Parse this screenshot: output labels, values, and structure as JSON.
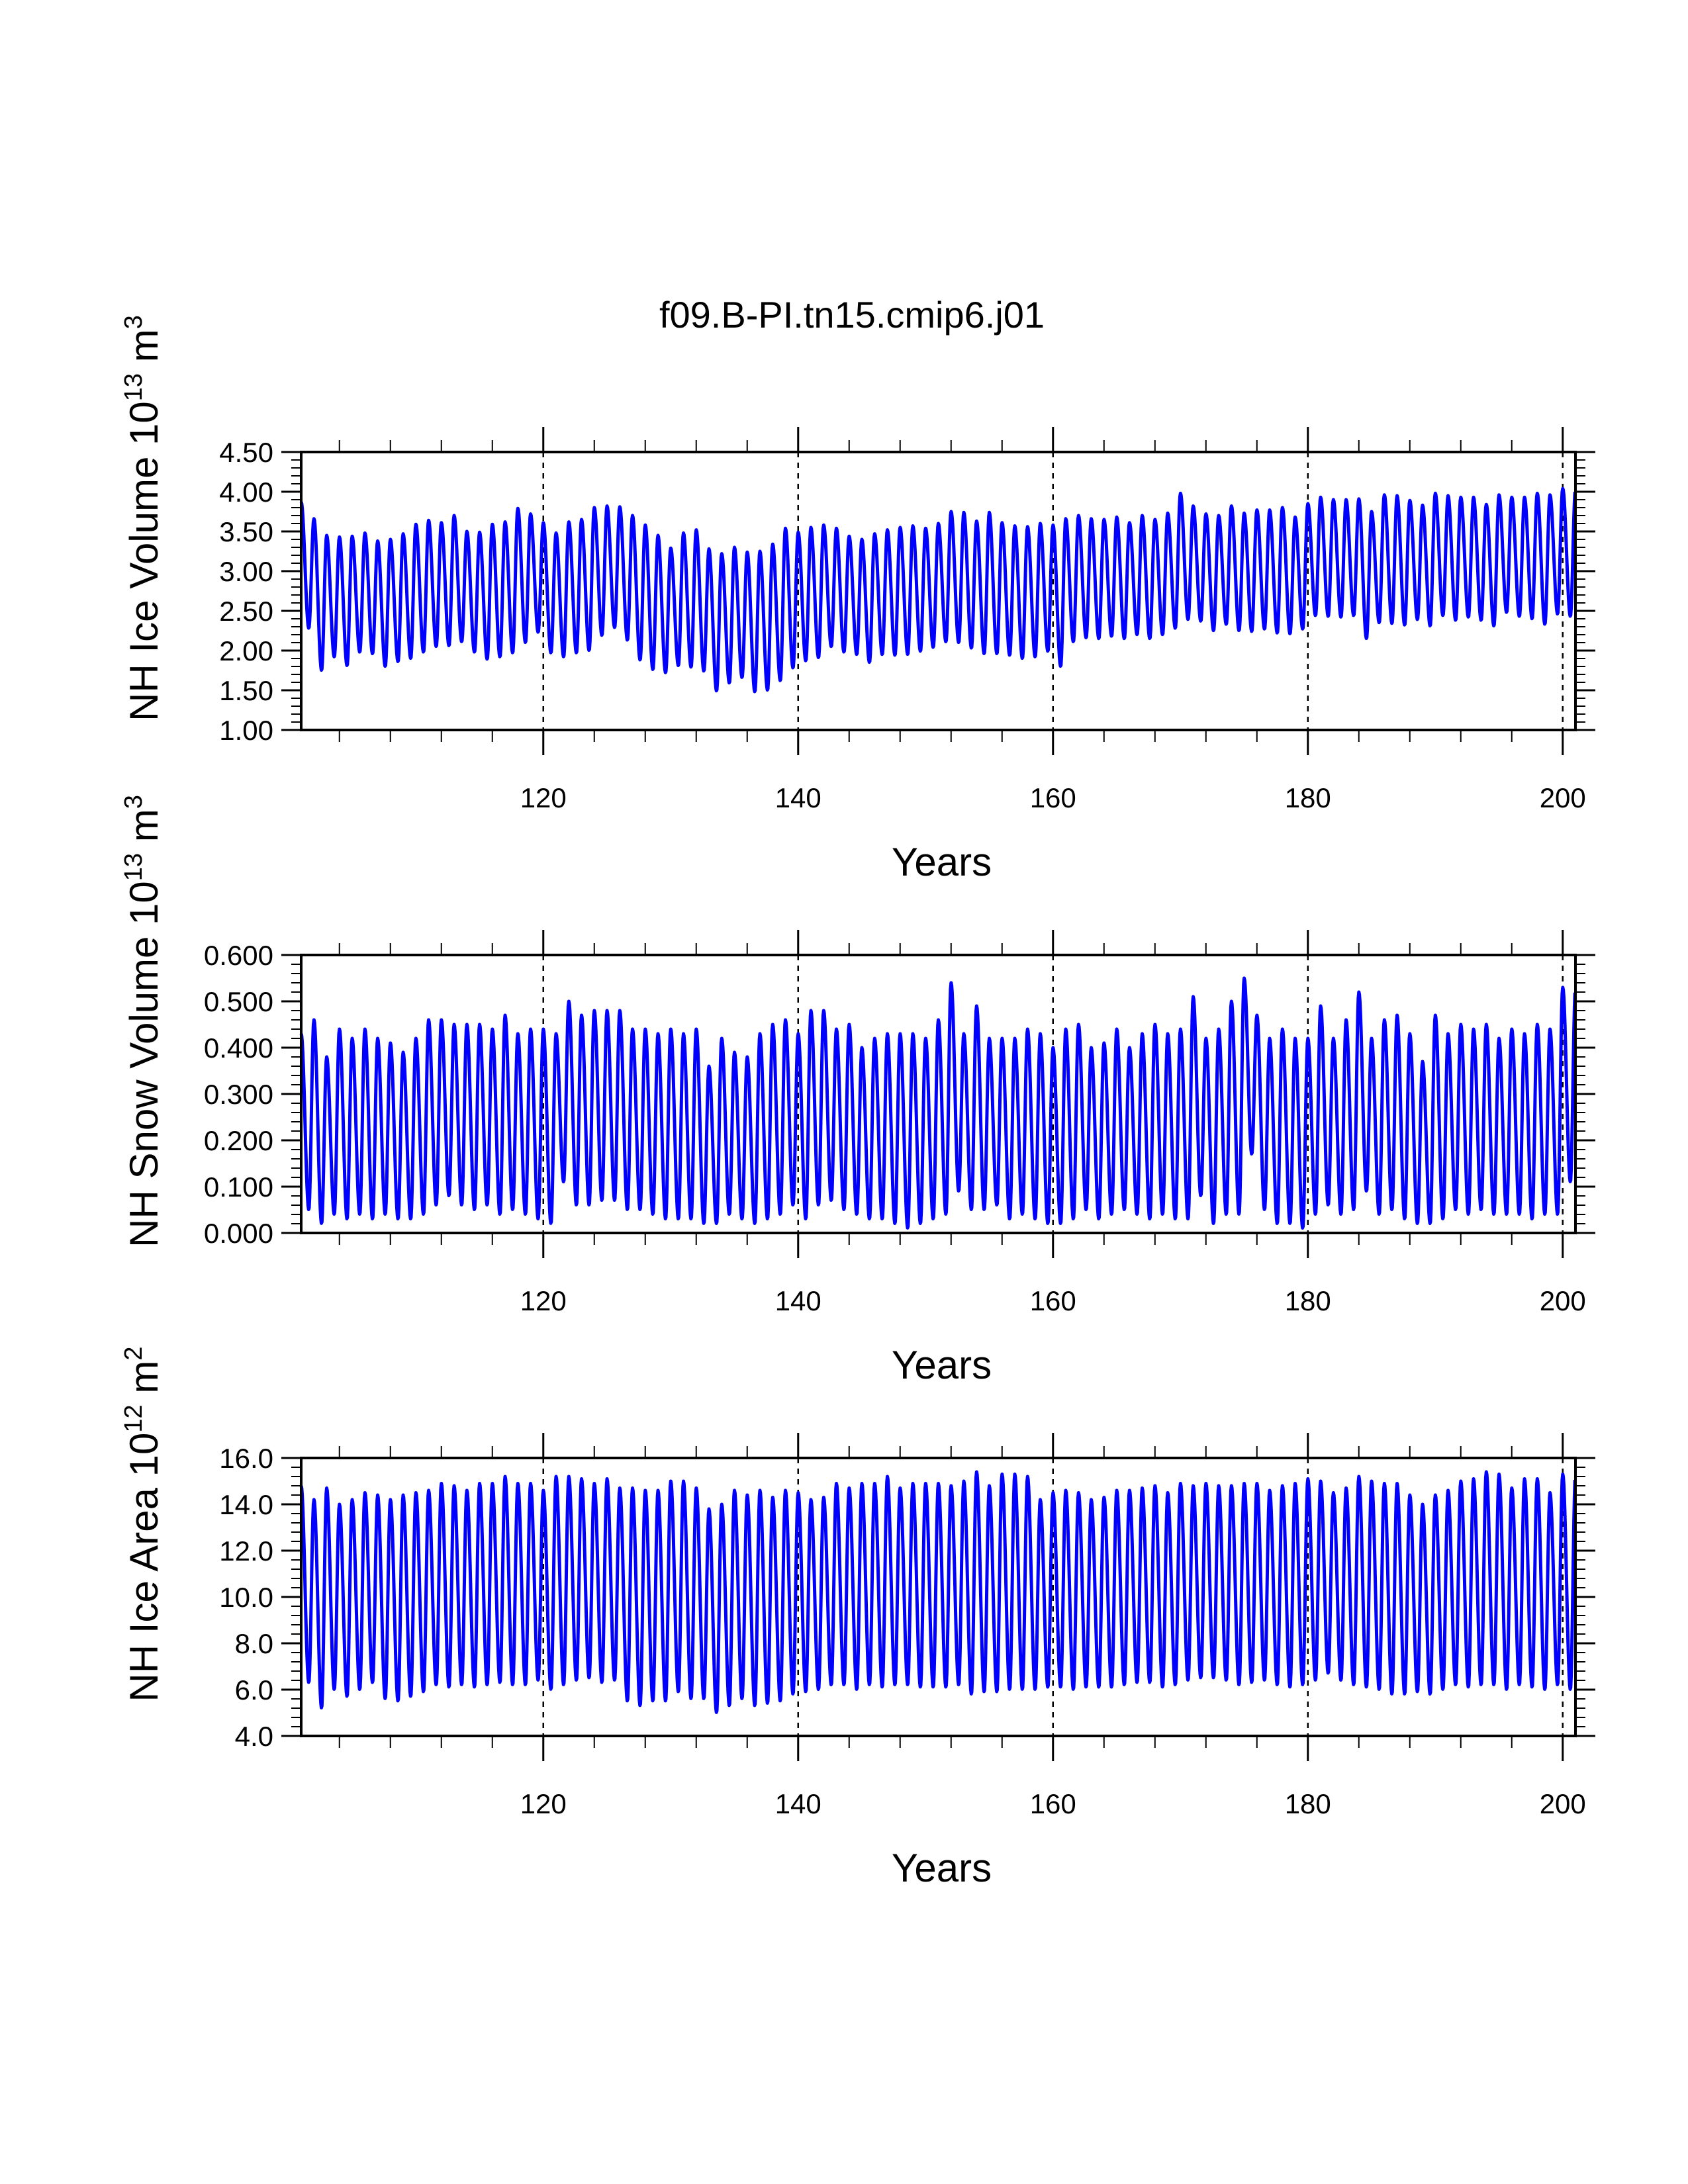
{
  "title": "f09.B-PI.tn15.cmip6.j01",
  "chart_data": [
    {
      "type": "line",
      "title": "",
      "xlabel": "Years",
      "ylabel": "NH Ice Volume 10¹³ m³",
      "ylabel_parts": {
        "base": "NH Ice Volume 10",
        "exp1": "13",
        "unit": " m",
        "exp2": "3"
      },
      "xlim": [
        101,
        201
      ],
      "ylim": [
        1.0,
        4.5
      ],
      "x_ticks": [
        120,
        140,
        160,
        180,
        200
      ],
      "x_tick_labels": [
        "120",
        "140",
        "160",
        "180",
        "200"
      ],
      "y_ticks": [
        1.0,
        1.5,
        2.0,
        2.5,
        3.0,
        3.5,
        4.0,
        4.5
      ],
      "y_tick_labels": [
        "1.00",
        "1.50",
        "2.00",
        "2.50",
        "3.00",
        "3.50",
        "4.00",
        "4.50"
      ],
      "reference_lines_x": [
        120,
        140,
        160,
        180,
        200
      ],
      "series": [
        {
          "color": "#0000ff",
          "years": [
            101,
            102,
            103,
            104,
            105,
            106,
            107,
            108,
            109,
            110,
            111,
            112,
            113,
            114,
            115,
            116,
            117,
            118,
            119,
            120,
            121,
            122,
            123,
            124,
            125,
            126,
            127,
            128,
            129,
            130,
            131,
            132,
            133,
            134,
            135,
            136,
            137,
            138,
            139,
            140,
            141,
            142,
            143,
            144,
            145,
            146,
            147,
            148,
            149,
            150,
            151,
            152,
            153,
            154,
            155,
            156,
            157,
            158,
            159,
            160,
            161,
            162,
            163,
            164,
            165,
            166,
            167,
            168,
            169,
            170,
            171,
            172,
            173,
            174,
            175,
            176,
            177,
            178,
            179,
            180,
            181,
            182,
            183,
            184,
            185,
            186,
            187,
            188,
            189,
            190,
            191,
            192,
            193,
            194,
            195,
            196,
            197,
            198,
            199,
            200
          ],
          "annual_max": [
            3.87,
            3.66,
            3.45,
            3.43,
            3.44,
            3.48,
            3.38,
            3.4,
            3.47,
            3.59,
            3.64,
            3.61,
            3.7,
            3.5,
            3.49,
            3.59,
            3.62,
            3.79,
            3.72,
            3.61,
            3.48,
            3.62,
            3.65,
            3.8,
            3.82,
            3.81,
            3.7,
            3.58,
            3.45,
            3.29,
            3.48,
            3.52,
            3.28,
            3.22,
            3.3,
            3.24,
            3.25,
            3.34,
            3.54,
            3.49,
            3.55,
            3.58,
            3.54,
            3.44,
            3.4,
            3.47,
            3.52,
            3.55,
            3.57,
            3.54,
            3.6,
            3.75,
            3.74,
            3.63,
            3.74,
            3.61,
            3.57,
            3.56,
            3.6,
            3.58,
            3.66,
            3.7,
            3.66,
            3.65,
            3.68,
            3.61,
            3.7,
            3.65,
            3.73,
            3.98,
            3.82,
            3.72,
            3.7,
            3.82,
            3.73,
            3.77,
            3.77,
            3.8,
            3.68,
            3.85,
            3.93,
            3.9,
            3.9,
            3.91,
            3.75,
            3.96,
            3.95,
            3.89,
            3.83,
            3.98,
            3.95,
            3.93,
            3.93,
            3.84,
            3.96,
            3.93,
            3.93,
            3.98,
            3.96,
            4.04
          ],
          "annual_min": [
            2.28,
            1.75,
            1.92,
            1.81,
            1.98,
            1.96,
            1.8,
            1.86,
            1.9,
            1.98,
            2.05,
            2.06,
            2.11,
            1.98,
            1.89,
            1.92,
            1.97,
            2.1,
            2.23,
            1.97,
            1.92,
            1.97,
            2.0,
            2.19,
            2.29,
            2.13,
            1.88,
            1.76,
            1.72,
            1.81,
            1.79,
            1.74,
            1.49,
            1.59,
            1.66,
            1.48,
            1.5,
            1.62,
            1.78,
            1.87,
            1.91,
            2.05,
            1.98,
            1.95,
            1.85,
            1.95,
            1.94,
            1.95,
            1.99,
            2.04,
            2.11,
            2.1,
            2.03,
            1.96,
            1.96,
            1.94,
            1.9,
            1.92,
            1.99,
            1.8,
            2.11,
            2.16,
            2.15,
            2.18,
            2.15,
            2.2,
            2.15,
            2.2,
            2.28,
            2.39,
            2.37,
            2.25,
            2.33,
            2.25,
            2.24,
            2.27,
            2.22,
            2.21,
            2.27,
            2.44,
            2.43,
            2.42,
            2.44,
            2.15,
            2.35,
            2.34,
            2.32,
            2.39,
            2.31,
            2.44,
            2.38,
            2.42,
            2.38,
            2.31,
            2.48,
            2.43,
            2.4,
            2.33,
            2.46,
            2.43
          ]
        }
      ]
    },
    {
      "type": "line",
      "title": "",
      "xlabel": "Years",
      "ylabel": "NH Snow Volume 10¹³ m³",
      "ylabel_parts": {
        "base": "NH Snow Volume 10",
        "exp1": "13",
        "unit": " m",
        "exp2": "3"
      },
      "xlim": [
        101,
        201
      ],
      "ylim": [
        0.0,
        0.6
      ],
      "x_ticks": [
        120,
        140,
        160,
        180,
        200
      ],
      "x_tick_labels": [
        "120",
        "140",
        "160",
        "180",
        "200"
      ],
      "y_ticks": [
        0.0,
        0.1,
        0.2,
        0.3,
        0.4,
        0.5,
        0.6
      ],
      "y_tick_labels": [
        "0.000",
        "0.100",
        "0.200",
        "0.300",
        "0.400",
        "0.500",
        "0.600"
      ],
      "reference_lines_x": [
        120,
        140,
        160,
        180,
        200
      ],
      "series": [
        {
          "color": "#0000ff",
          "years": [
            101,
            102,
            103,
            104,
            105,
            106,
            107,
            108,
            109,
            110,
            111,
            112,
            113,
            114,
            115,
            116,
            117,
            118,
            119,
            120,
            121,
            122,
            123,
            124,
            125,
            126,
            127,
            128,
            129,
            130,
            131,
            132,
            133,
            134,
            135,
            136,
            137,
            138,
            139,
            140,
            141,
            142,
            143,
            144,
            145,
            146,
            147,
            148,
            149,
            150,
            151,
            152,
            153,
            154,
            155,
            156,
            157,
            158,
            159,
            160,
            161,
            162,
            163,
            164,
            165,
            166,
            167,
            168,
            169,
            170,
            171,
            172,
            173,
            174,
            175,
            176,
            177,
            178,
            179,
            180,
            181,
            182,
            183,
            184,
            185,
            186,
            187,
            188,
            189,
            190,
            191,
            192,
            193,
            194,
            195,
            196,
            197,
            198,
            199,
            200
          ],
          "annual_max": [
            0.43,
            0.46,
            0.38,
            0.44,
            0.42,
            0.44,
            0.42,
            0.41,
            0.39,
            0.42,
            0.46,
            0.46,
            0.45,
            0.45,
            0.45,
            0.44,
            0.47,
            0.43,
            0.44,
            0.44,
            0.43,
            0.5,
            0.47,
            0.48,
            0.48,
            0.48,
            0.44,
            0.44,
            0.43,
            0.44,
            0.43,
            0.44,
            0.36,
            0.42,
            0.39,
            0.38,
            0.43,
            0.45,
            0.46,
            0.43,
            0.48,
            0.48,
            0.44,
            0.45,
            0.4,
            0.42,
            0.43,
            0.43,
            0.43,
            0.42,
            0.46,
            0.54,
            0.43,
            0.49,
            0.42,
            0.42,
            0.42,
            0.44,
            0.43,
            0.4,
            0.44,
            0.45,
            0.4,
            0.41,
            0.44,
            0.4,
            0.43,
            0.45,
            0.43,
            0.44,
            0.51,
            0.42,
            0.44,
            0.5,
            0.55,
            0.47,
            0.42,
            0.44,
            0.42,
            0.42,
            0.49,
            0.42,
            0.46,
            0.52,
            0.42,
            0.46,
            0.47,
            0.43,
            0.37,
            0.47,
            0.43,
            0.45,
            0.44,
            0.45,
            0.42,
            0.44,
            0.43,
            0.45,
            0.44,
            0.53
          ],
          "annual_min": [
            0.05,
            0.02,
            0.04,
            0.03,
            0.04,
            0.03,
            0.04,
            0.03,
            0.03,
            0.04,
            0.06,
            0.08,
            0.06,
            0.05,
            0.06,
            0.04,
            0.05,
            0.04,
            0.03,
            0.02,
            0.11,
            0.06,
            0.06,
            0.07,
            0.07,
            0.05,
            0.05,
            0.04,
            0.03,
            0.03,
            0.03,
            0.02,
            0.02,
            0.04,
            0.03,
            0.02,
            0.03,
            0.04,
            0.06,
            0.03,
            0.06,
            0.07,
            0.05,
            0.04,
            0.03,
            0.03,
            0.02,
            0.01,
            0.02,
            0.03,
            0.04,
            0.09,
            0.05,
            0.05,
            0.06,
            0.03,
            0.04,
            0.03,
            0.02,
            0.02,
            0.03,
            0.05,
            0.03,
            0.04,
            0.05,
            0.04,
            0.03,
            0.04,
            0.03,
            0.03,
            0.08,
            0.02,
            0.04,
            0.04,
            0.17,
            0.05,
            0.02,
            0.02,
            0.01,
            0.04,
            0.06,
            0.04,
            0.05,
            0.09,
            0.04,
            0.05,
            0.03,
            0.02,
            0.02,
            0.03,
            0.05,
            0.04,
            0.05,
            0.04,
            0.04,
            0.04,
            0.03,
            0.04,
            0.04,
            0.11
          ]
        }
      ]
    },
    {
      "type": "line",
      "title": "",
      "xlabel": "Years",
      "ylabel": "NH Ice Area 10¹² m²",
      "ylabel_parts": {
        "base": "NH Ice Area 10",
        "exp1": "12",
        "unit": " m",
        "exp2": "2"
      },
      "xlim": [
        101,
        201
      ],
      "ylim": [
        4.0,
        16.0
      ],
      "x_ticks": [
        120,
        140,
        160,
        180,
        200
      ],
      "x_tick_labels": [
        "120",
        "140",
        "160",
        "180",
        "200"
      ],
      "y_ticks": [
        4.0,
        6.0,
        8.0,
        10.0,
        12.0,
        14.0,
        16.0
      ],
      "y_tick_labels": [
        "4.0",
        "6.0",
        "8.0",
        "10.0",
        "12.0",
        "14.0",
        "16.0"
      ],
      "reference_lines_x": [
        120,
        140,
        160,
        180,
        200
      ],
      "series": [
        {
          "color": "#0000ff",
          "years": [
            101,
            102,
            103,
            104,
            105,
            106,
            107,
            108,
            109,
            110,
            111,
            112,
            113,
            114,
            115,
            116,
            117,
            118,
            119,
            120,
            121,
            122,
            123,
            124,
            125,
            126,
            127,
            128,
            129,
            130,
            131,
            132,
            133,
            134,
            135,
            136,
            137,
            138,
            139,
            140,
            141,
            142,
            143,
            144,
            145,
            146,
            147,
            148,
            149,
            150,
            151,
            152,
            153,
            154,
            155,
            156,
            157,
            158,
            159,
            160,
            161,
            162,
            163,
            164,
            165,
            166,
            167,
            168,
            169,
            170,
            171,
            172,
            173,
            174,
            175,
            176,
            177,
            178,
            179,
            180,
            181,
            182,
            183,
            184,
            185,
            186,
            187,
            188,
            189,
            190,
            191,
            192,
            193,
            194,
            195,
            196,
            197,
            198,
            199,
            200
          ],
          "annual_max": [
            14.8,
            14.2,
            14.7,
            14.0,
            14.2,
            14.5,
            14.4,
            14.2,
            14.4,
            14.5,
            14.6,
            14.9,
            14.8,
            14.6,
            14.9,
            14.9,
            15.2,
            14.9,
            14.9,
            14.6,
            15.2,
            15.2,
            15.1,
            14.9,
            15.1,
            14.7,
            14.7,
            14.6,
            14.6,
            15.0,
            15.0,
            14.7,
            13.8,
            14.0,
            14.6,
            14.4,
            14.6,
            14.3,
            14.6,
            14.5,
            14.2,
            14.3,
            14.9,
            14.7,
            14.9,
            14.9,
            15.2,
            14.7,
            14.9,
            14.9,
            14.9,
            14.8,
            15.0,
            15.4,
            14.8,
            15.3,
            15.3,
            15.2,
            14.2,
            14.5,
            14.6,
            14.5,
            14.2,
            14.3,
            14.6,
            14.6,
            14.7,
            14.8,
            14.5,
            14.9,
            14.8,
            14.9,
            14.8,
            14.8,
            14.9,
            14.9,
            14.6,
            14.8,
            14.9,
            15.1,
            15.0,
            14.5,
            14.7,
            15.2,
            15.0,
            14.9,
            14.9,
            14.4,
            14.0,
            14.4,
            14.6,
            15.0,
            15.1,
            15.4,
            15.3,
            14.7,
            15.1,
            15.1,
            14.5,
            15.3
          ],
          "annual_min": [
            6.3,
            5.2,
            6.0,
            5.7,
            6.0,
            6.3,
            5.6,
            5.5,
            5.7,
            5.9,
            6.2,
            6.1,
            6.2,
            6.1,
            6.2,
            6.3,
            6.2,
            6.2,
            6.4,
            6.0,
            6.2,
            6.4,
            6.5,
            6.3,
            6.4,
            5.5,
            5.3,
            5.5,
            5.5,
            5.9,
            5.6,
            5.6,
            5.0,
            5.3,
            5.6,
            5.3,
            5.4,
            5.5,
            5.8,
            5.9,
            6.0,
            6.2,
            6.2,
            6.0,
            6.2,
            6.1,
            6.2,
            6.2,
            6.1,
            6.1,
            6.1,
            6.2,
            5.8,
            5.9,
            5.9,
            6.0,
            6.0,
            6.0,
            6.1,
            6.1,
            6.0,
            6.1,
            6.1,
            6.1,
            6.2,
            6.3,
            6.3,
            6.1,
            6.2,
            6.4,
            6.5,
            6.5,
            6.4,
            6.2,
            6.3,
            6.4,
            6.2,
            6.1,
            6.2,
            6.4,
            6.7,
            6.4,
            6.2,
            6.1,
            6.0,
            5.8,
            5.8,
            5.9,
            5.8,
            6.0,
            6.2,
            6.1,
            6.2,
            6.2,
            6.0,
            6.2,
            6.1,
            6.0,
            6.2,
            6.0
          ]
        }
      ]
    }
  ]
}
